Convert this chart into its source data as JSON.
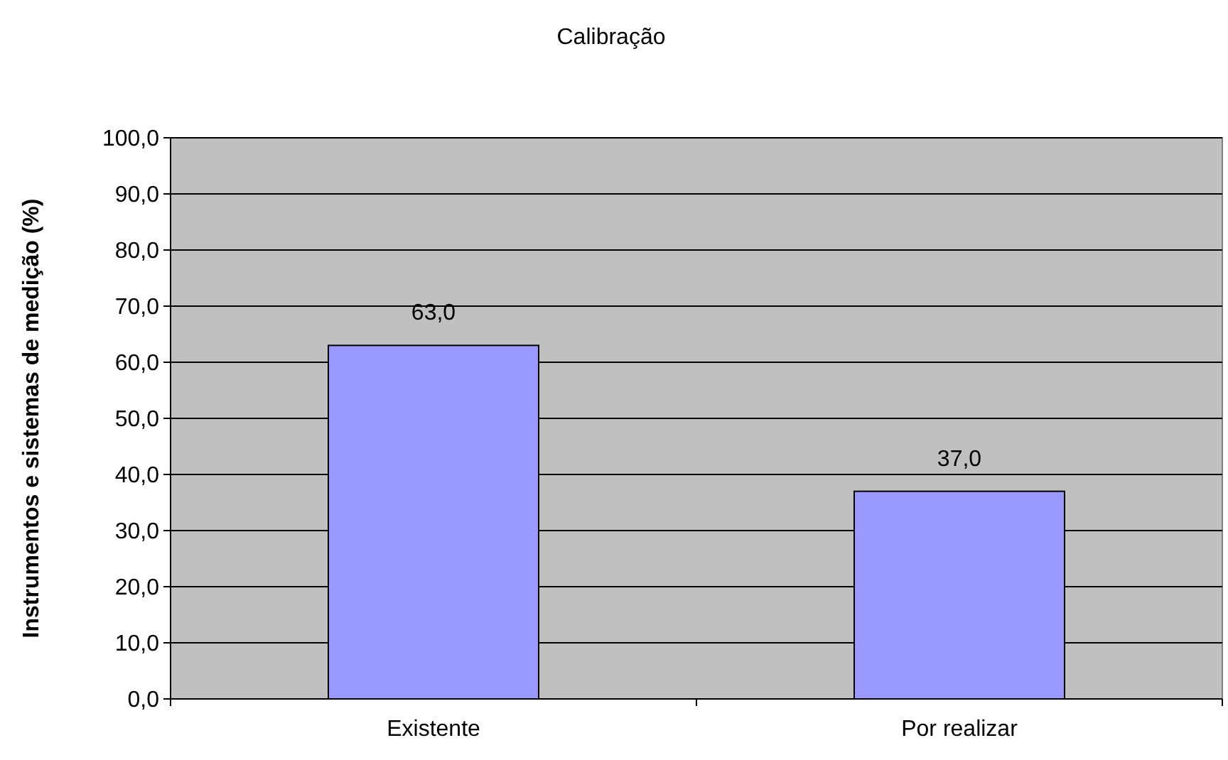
{
  "chart_data": {
    "type": "bar",
    "title": "Calibração",
    "ylabel": "Instrumentos e sistemas de medição (%)",
    "categories": [
      "Existente",
      "Por realizar"
    ],
    "values": [
      63,
      37
    ],
    "value_labels": [
      "63,0",
      "37,0"
    ],
    "color": "#9999ff",
    "ylim": [
      0,
      100
    ],
    "yticks": [
      {
        "value": 0,
        "label": "0,0"
      },
      {
        "value": 10,
        "label": "10,0"
      },
      {
        "value": 20,
        "label": "20,0"
      },
      {
        "value": 30,
        "label": "30,0"
      },
      {
        "value": 40,
        "label": "40,0"
      },
      {
        "value": 50,
        "label": "50,0"
      },
      {
        "value": 60,
        "label": "60,0"
      },
      {
        "value": 70,
        "label": "70,0"
      },
      {
        "value": 80,
        "label": "80,0"
      },
      {
        "value": 90,
        "label": "90,0"
      },
      {
        "value": 100,
        "label": "100,0"
      }
    ],
    "grid": "y"
  }
}
